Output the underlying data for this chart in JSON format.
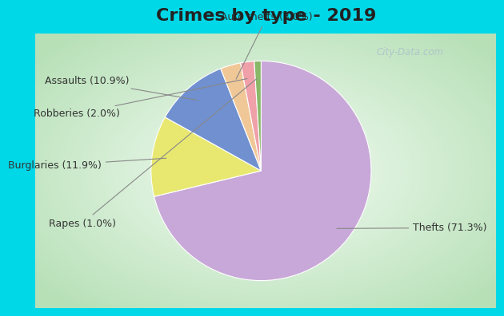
{
  "title": "Crimes by type - 2019",
  "slices": [
    {
      "label": "Thefts (71.3%)",
      "value": 71.3,
      "color": "#c8a8d8"
    },
    {
      "label": "Burglaries (11.9%)",
      "value": 11.9,
      "color": "#e8e870"
    },
    {
      "label": "Assaults (10.9%)",
      "value": 10.9,
      "color": "#7090d0"
    },
    {
      "label": "Auto thefts (3.0%)",
      "value": 3.0,
      "color": "#f0c898"
    },
    {
      "label": "Robberies (2.0%)",
      "value": 2.0,
      "color": "#f0a0a8"
    },
    {
      "label": "Rapes (1.0%)",
      "value": 1.0,
      "color": "#88b868"
    }
  ],
  "bg_outer": "#00d8e8",
  "bg_inner_edge": "#b8ddb8",
  "bg_inner_center": "#f0f8f0",
  "title_fontsize": 16,
  "label_fontsize": 9,
  "watermark": "City-Data.com",
  "startangle": 90
}
